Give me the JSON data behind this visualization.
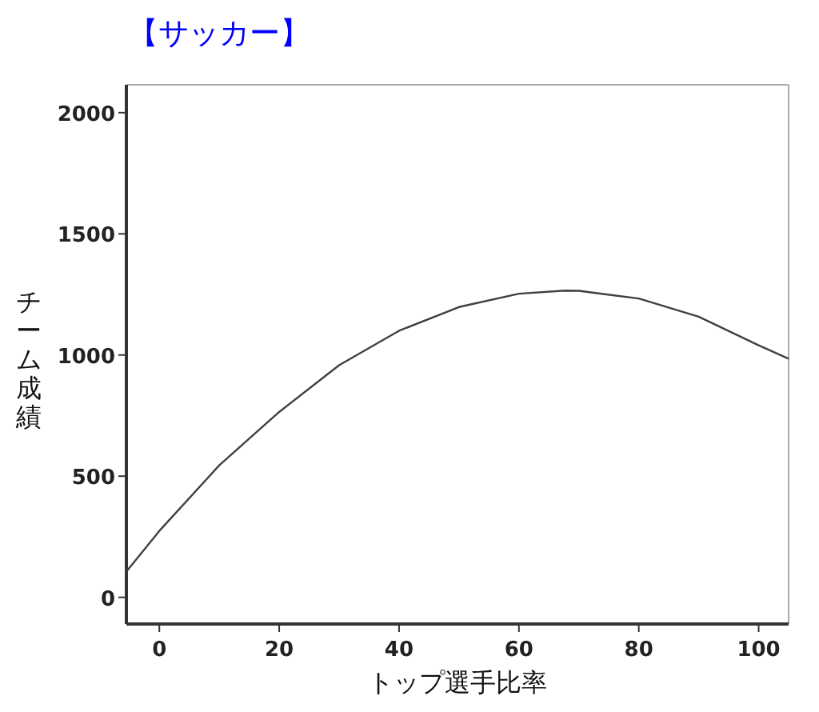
{
  "chart_data": {
    "type": "line",
    "title": "【サッカー】",
    "xlabel": "トップ選手比率",
    "ylabel": "チーム成績",
    "x": [
      -5.5,
      0,
      10,
      20,
      30,
      40,
      50,
      60,
      67.7,
      70,
      80,
      90,
      100,
      105
    ],
    "series": [
      {
        "color": "#404040",
        "values": [
          106,
          274,
          545,
          765,
          958,
          1100,
          1198,
          1253,
          1266,
          1265,
          1233,
          1158,
          1040,
          985
        ]
      }
    ],
    "xlim": [
      -5.5,
      105
    ],
    "ylim": [
      -110,
      2115
    ],
    "xticks": [
      0,
      20,
      40,
      60,
      80,
      100
    ],
    "yticks": [
      0,
      500,
      1000,
      1500,
      2000
    ]
  }
}
